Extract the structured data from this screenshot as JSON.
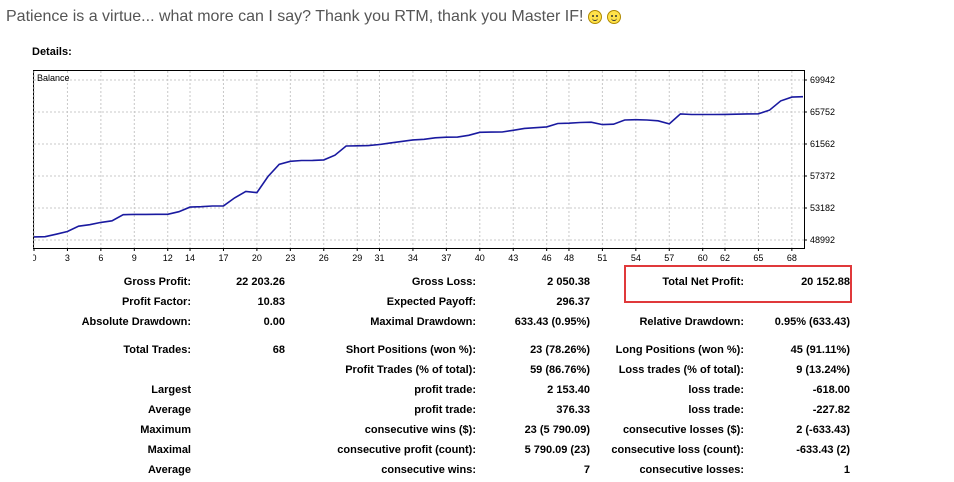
{
  "headline": "Patience is a virtue... what more can I say? Thank you RTM, thank you Master IF!",
  "details_label": "Details:",
  "chart_data": {
    "type": "line",
    "title": "Balance",
    "x_ticks": [
      0,
      3,
      6,
      9,
      12,
      14,
      17,
      20,
      23,
      26,
      29,
      31,
      34,
      37,
      40,
      43,
      46,
      48,
      51,
      54,
      57,
      60,
      62,
      65,
      68
    ],
    "y_ticks": [
      48992,
      53182,
      57372,
      61562,
      65752,
      69942
    ],
    "ylim": [
      48992,
      69942
    ],
    "xlim": [
      0,
      69
    ],
    "grid": true,
    "series": [
      {
        "color": "#1a1aa0",
        "x": [
          0,
          1,
          2,
          3,
          4,
          5,
          6,
          7,
          8,
          9,
          10,
          11,
          12,
          13,
          14,
          15,
          16,
          17,
          18,
          19,
          20,
          21,
          22,
          23,
          24,
          25,
          26,
          27,
          28,
          29,
          30,
          31,
          32,
          33,
          34,
          35,
          36,
          37,
          38,
          39,
          40,
          41,
          42,
          43,
          44,
          45,
          46,
          47,
          48,
          49,
          50,
          51,
          52,
          53,
          54,
          55,
          56,
          57,
          58,
          59,
          60,
          61,
          62,
          63,
          64,
          65,
          66,
          67,
          68,
          69
        ],
        "y": [
          49400,
          49420,
          49750,
          50100,
          50800,
          51000,
          51300,
          51500,
          52300,
          52350,
          52350,
          52360,
          52360,
          52700,
          53300,
          53350,
          53450,
          53460,
          54500,
          55350,
          55200,
          57300,
          58900,
          59300,
          59400,
          59420,
          59480,
          60100,
          61300,
          61330,
          61350,
          61500,
          61700,
          61900,
          62100,
          62180,
          62380,
          62450,
          62470,
          62700,
          63100,
          63120,
          63130,
          63350,
          63600,
          63700,
          63800,
          64250,
          64280,
          64380,
          64420,
          64100,
          64150,
          64700,
          64750,
          64700,
          64600,
          64200,
          65500,
          65420,
          65430,
          65430,
          65440,
          65460,
          65500,
          65520,
          66000,
          67200,
          67700,
          67750
        ]
      }
    ]
  },
  "stats_rows": [
    {
      "c1l": "Gross Profit:",
      "c1v": "22 203.26",
      "c2l": "Gross Loss:",
      "c2v": "2 050.38",
      "c3l": "Total Net Profit:",
      "c3v": "20 152.88"
    },
    {
      "c1l": "Profit Factor:",
      "c1v": "10.83",
      "c2l": "Expected Payoff:",
      "c2v": "296.37",
      "c3l": "",
      "c3v": ""
    },
    {
      "c1l": "Absolute Drawdown:",
      "c1v": "0.00",
      "c2l": "Maximal Drawdown:",
      "c2v": "633.43 (0.95%)",
      "c3l": "Relative Drawdown:",
      "c3v": "0.95% (633.43)"
    },
    {
      "c1l": "Total Trades:",
      "c1v": "68",
      "c2l": "Short Positions (won %):",
      "c2v": "23 (78.26%)",
      "c3l": "Long Positions (won %):",
      "c3v": "45 (91.11%)"
    },
    {
      "c1l": "",
      "c1v": "",
      "c2l": "Profit Trades (% of total):",
      "c2v": "59 (86.76%)",
      "c3l": "Loss trades (% of total):",
      "c3v": "9 (13.24%)"
    },
    {
      "c1l": "Largest",
      "c1v": "",
      "c2l": "profit trade:",
      "c2v": "2 153.40",
      "c3l": "loss trade:",
      "c3v": "-618.00"
    },
    {
      "c1l": "Average",
      "c1v": "",
      "c2l": "profit trade:",
      "c2v": "376.33",
      "c3l": "loss trade:",
      "c3v": "-227.82"
    },
    {
      "c1l": "Maximum",
      "c1v": "",
      "c2l": "consecutive wins ($):",
      "c2v": "23 (5 790.09)",
      "c3l": "consecutive losses ($):",
      "c3v": "2 (-633.43)"
    },
    {
      "c1l": "Maximal",
      "c1v": "",
      "c2l": "consecutive profit (count):",
      "c2v": "5 790.09 (23)",
      "c3l": "consecutive loss (count):",
      "c3v": "-633.43 (2)"
    },
    {
      "c1l": "Average",
      "c1v": "",
      "c2l": "consecutive wins:",
      "c2v": "7",
      "c3l": "consecutive losses:",
      "c3v": "1"
    }
  ],
  "highlight_color": "#e0393b"
}
